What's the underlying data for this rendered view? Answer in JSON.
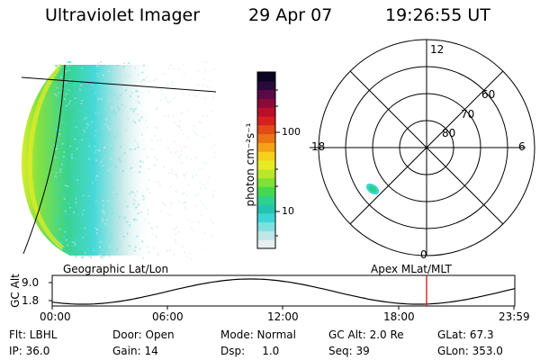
{
  "header": {
    "title": "Ultraviolet Imager",
    "date": "29 Apr 07",
    "time": "19:26:55 UT"
  },
  "colorbar": {
    "label": "photon cm⁻²s⁻¹",
    "ticks": [
      "100",
      "10"
    ],
    "colors": [
      "#e6f0ee",
      "#bfe6e6",
      "#7fe0e0",
      "#3dd6d6",
      "#22c4b0",
      "#2fd08a",
      "#46d84e",
      "#7fe035",
      "#b8e829",
      "#e6ec24",
      "#f6d01c",
      "#f4a018",
      "#ec7414",
      "#e24a16",
      "#d62020",
      "#b8102a",
      "#8a0a3a",
      "#5a0a44",
      "#2a0a3a",
      "#0a0420"
    ]
  },
  "polar": {
    "hour_labels": {
      "top": "12",
      "left": "18",
      "right": "6",
      "bottom": "0"
    },
    "lat_labels": [
      "80",
      "70",
      "60"
    ]
  },
  "altitude_plot": {
    "ylabel": "GC Alt",
    "yticks": [
      "9.0",
      "1.8"
    ],
    "left_title": "Geographic Lat/Lon",
    "right_title": "Apex MLat/MLT",
    "xticks": [
      "00:00",
      "06:00",
      "12:00",
      "18:00",
      "23:59"
    ],
    "current_marker_color": "#d01010"
  },
  "info": {
    "row1": [
      "Flt: LBHL",
      "Door: Open",
      "Mode: Normal",
      "GC Alt: 2.0 Re",
      "GLat:  67.3"
    ],
    "row2": [
      "IP: 36.0",
      "Gain: 14",
      "Dsp:     1.0",
      "Seq: 39",
      "GLon: 353.0"
    ]
  }
}
